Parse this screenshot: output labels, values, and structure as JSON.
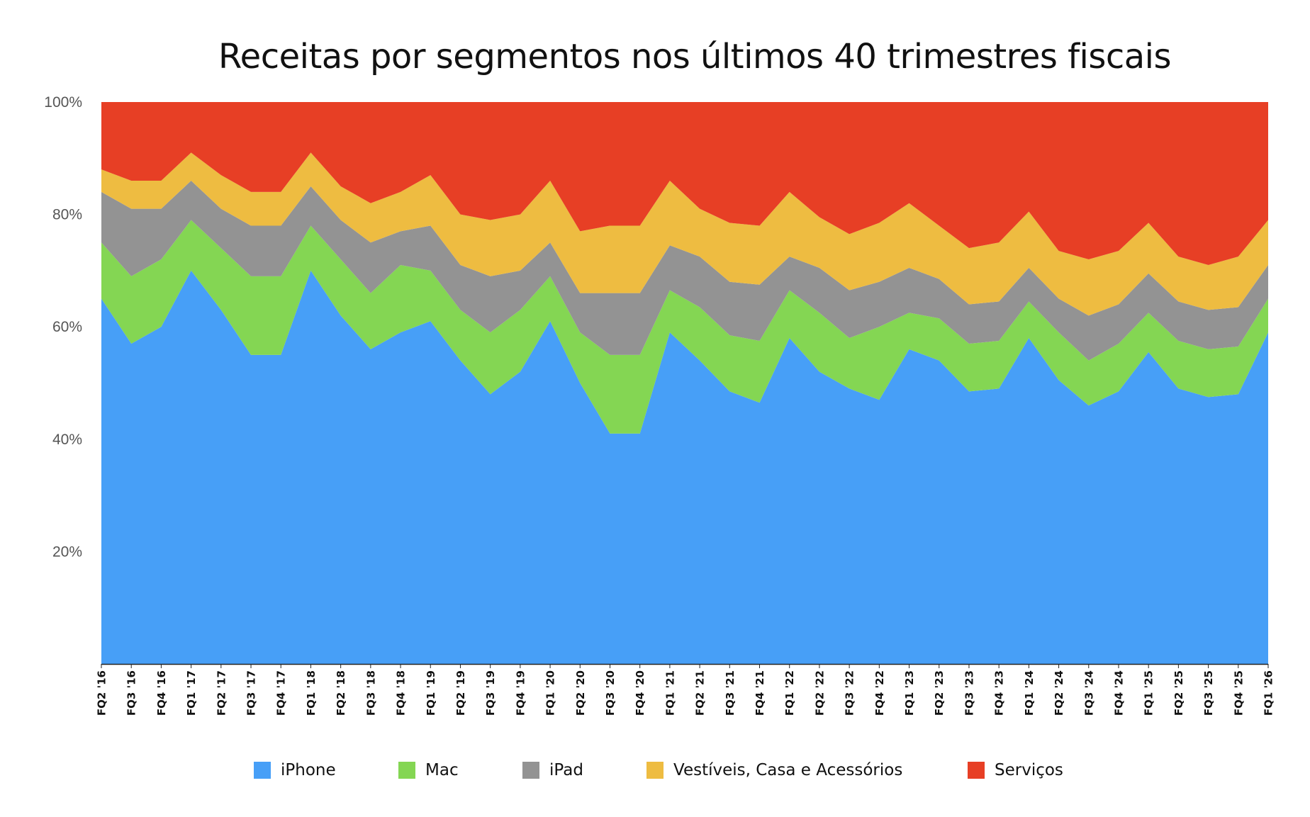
{
  "chart_data": {
    "type": "area",
    "title": "Receitas por segmentos nos últimos 40 trimestres fiscais",
    "stacked": true,
    "percent": true,
    "ylim": [
      0,
      100
    ],
    "yticks": [
      {
        "value": 20,
        "label": "20%"
      },
      {
        "value": 40,
        "label": "40%"
      },
      {
        "value": 60,
        "label": "60%"
      },
      {
        "value": 80,
        "label": "80%"
      },
      {
        "value": 100,
        "label": "100%"
      }
    ],
    "categories": [
      "FQ2 '16",
      "FQ3 '16",
      "FQ4 '16",
      "FQ1 '17",
      "FQ2 '17",
      "FQ3 '17",
      "FQ4 '17",
      "FQ1 '18",
      "FQ2 '18",
      "FQ3 '18",
      "FQ4 '18",
      "FQ1 '19",
      "FQ2 '19",
      "FQ3 '19",
      "FQ4 '19",
      "FQ1 '20",
      "FQ2 '20",
      "FQ3 '20",
      "FQ4 '20",
      "FQ1 '21",
      "FQ2 '21",
      "FQ3 '21",
      "FQ4 '21",
      "FQ1 '22",
      "FQ2 '22",
      "FQ3 '22",
      "FQ4 '22",
      "FQ1 '23",
      "FQ2 '23",
      "FQ3 '23",
      "FQ4 '23",
      "FQ1 '24",
      "FQ2 '24",
      "FQ3 '24",
      "FQ4 '24",
      "FQ1 '25",
      "FQ2 '25",
      "FQ3 '25",
      "FQ4 '25",
      "FQ1 '26"
    ],
    "series": [
      {
        "name": "iPhone",
        "color": "#479ff7",
        "values": [
          65,
          57,
          60,
          70,
          63,
          55,
          55,
          70,
          62,
          56,
          59,
          61,
          54,
          48,
          52,
          61,
          50,
          41,
          41,
          59,
          54,
          48.5,
          46.5,
          58,
          52,
          49,
          47,
          56,
          54,
          48.5,
          49,
          58,
          50.5,
          46,
          48.5,
          55.5,
          49,
          47.5,
          48,
          59
        ]
      },
      {
        "name": "Mac",
        "color": "#84d653",
        "values": [
          10,
          12,
          12,
          9,
          11,
          14,
          14,
          8,
          10,
          10,
          12,
          9,
          9,
          11,
          11,
          8,
          9,
          14,
          14,
          7.5,
          9.5,
          10,
          11,
          8.5,
          10.5,
          9,
          13,
          6.5,
          7.5,
          8.5,
          8.5,
          6.5,
          8.5,
          8,
          8.5,
          7,
          8.5,
          8.5,
          8.5,
          6
        ]
      },
      {
        "name": "iPad",
        "color": "#939393",
        "values": [
          9,
          12,
          9,
          7,
          7,
          9,
          9,
          7,
          7,
          9,
          6,
          8,
          8,
          10,
          7,
          6,
          7,
          11,
          11,
          8,
          9,
          9.5,
          10,
          6,
          8,
          8.5,
          8,
          8,
          7,
          7,
          7,
          6,
          6,
          8,
          7,
          7,
          7,
          7,
          7,
          6
        ]
      },
      {
        "name": "Vestíveis, Casa e Acessórios",
        "color": "#eebc41",
        "values": [
          4,
          5,
          5,
          5,
          6,
          6,
          6,
          6,
          6,
          7,
          7,
          9,
          9,
          10,
          10,
          11,
          11,
          12,
          12,
          11.5,
          8.5,
          10.5,
          10.5,
          11.5,
          9,
          10,
          10.5,
          11.5,
          9.5,
          10,
          10.5,
          10,
          8.5,
          10,
          9.5,
          9,
          8,
          8,
          9,
          8
        ]
      },
      {
        "name": "Serviços",
        "color": "#e73f25",
        "values": [
          12,
          14,
          14,
          9,
          13,
          16,
          16,
          9,
          15,
          18,
          16,
          13,
          20,
          21,
          20,
          14,
          23,
          22,
          22,
          14,
          19,
          21.5,
          22,
          16,
          20.5,
          23.5,
          21.5,
          18,
          22,
          26,
          25,
          19.5,
          26.5,
          28,
          26.5,
          21.5,
          27.5,
          29,
          27.5,
          21
        ]
      }
    ],
    "grid": false,
    "legend": "bottom"
  }
}
